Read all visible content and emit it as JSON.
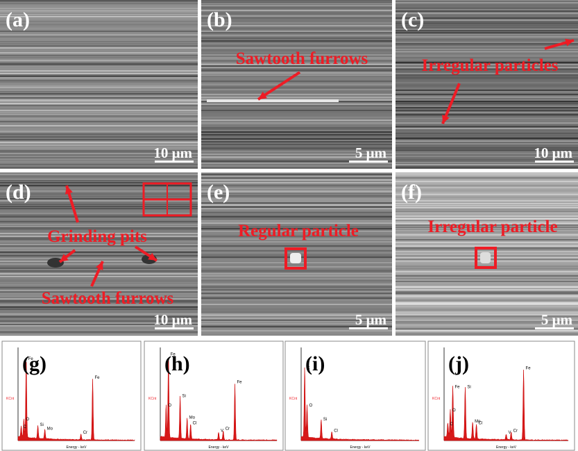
{
  "panels": [
    {
      "label": "(a)",
      "scale_bar": "10 μm"
    },
    {
      "label": "(b)",
      "scale_bar": "5 μm",
      "annotations": [
        "Sawtooth furrows"
      ]
    },
    {
      "label": "(c)",
      "scale_bar": "10 μm",
      "annotations": [
        "Irregular particles"
      ]
    },
    {
      "label": "(d)",
      "scale_bar": "10 μm",
      "annotations": [
        "Grinding pits",
        "Sawtooth furrows"
      ]
    },
    {
      "label": "(e)",
      "scale_bar": "5 μm",
      "annotations": [
        "Regular particle"
      ]
    },
    {
      "label": "(f)",
      "scale_bar": "5 μm",
      "annotations": [
        "Irregular particle"
      ]
    }
  ],
  "spectra": [
    {
      "label": "(g)",
      "y_axis": "KCnt",
      "x_axis": "Energy - keV",
      "elements": [
        "C",
        "O",
        "Fe",
        "Si",
        "Mo",
        "Cr",
        "Fe"
      ]
    },
    {
      "label": "(h)",
      "y_axis": "KCnt",
      "x_axis": "Energy - keV",
      "elements": [
        "O",
        "Fe",
        "Si",
        "Mo",
        "Cl",
        "V",
        "Cr",
        "Fe"
      ]
    },
    {
      "label": "(i)",
      "y_axis": "KCnt",
      "x_axis": "Energy - keV",
      "elements": [
        "C",
        "O",
        "Si",
        "Cl"
      ]
    },
    {
      "label": "(j)",
      "y_axis": "KCnt",
      "x_axis": "Energy - keV",
      "elements": [
        "C",
        "O",
        "Fe",
        "Si",
        "Mo",
        "Cl",
        "V",
        "Cr",
        "Fe"
      ]
    }
  ]
}
